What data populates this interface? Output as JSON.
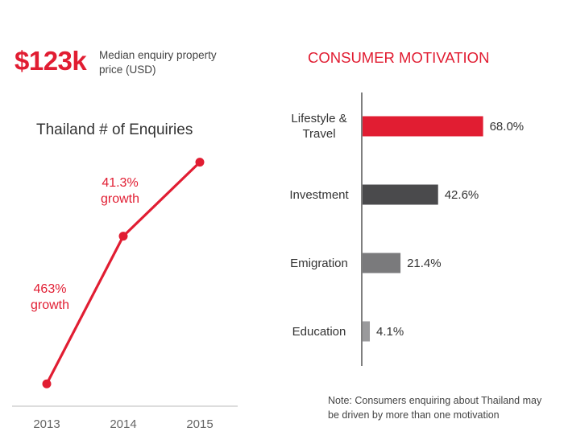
{
  "kpi": {
    "value": "$123k",
    "label": "Median enquiry property price (USD)"
  },
  "note": "Note: Consumers enquiring about Thailand may be driven by more than one motivation",
  "colors": {
    "accent": "#e11d32",
    "dark_bar": "#4a4a4c",
    "mid_bar": "#7a7a7c",
    "light_bar": "#9a9a9c"
  },
  "chart_data": [
    {
      "type": "line",
      "title": "Thailand # of Enquiries",
      "categories": [
        "2013",
        "2014",
        "2015"
      ],
      "series": [
        {
          "values": [
            1,
            5.63,
            7.95
          ]
        }
      ],
      "ylim": [
        0.3,
        9.0
      ],
      "grid": false,
      "legend": "none",
      "annotations": [
        {
          "lines": [
            "463%",
            "growth"
          ],
          "between": [
            "2013",
            "2014"
          ]
        },
        {
          "lines": [
            "41.3%",
            "growth"
          ],
          "between": [
            "2014",
            "2015"
          ]
        }
      ]
    },
    {
      "type": "bar",
      "orientation": "horizontal",
      "title": "CONSUMER MOTIVATION",
      "categories": [
        [
          "Lifestyle &",
          "Travel"
        ],
        [
          "Investment"
        ],
        [
          "Emigration"
        ],
        [
          "Education"
        ]
      ],
      "values": [
        68.0,
        42.6,
        21.4,
        4.1
      ],
      "value_labels": [
        "68.0%",
        "42.6%",
        "21.4%",
        "4.1%"
      ],
      "xlim": [
        0,
        100
      ],
      "grid": false,
      "legend": "none"
    }
  ]
}
